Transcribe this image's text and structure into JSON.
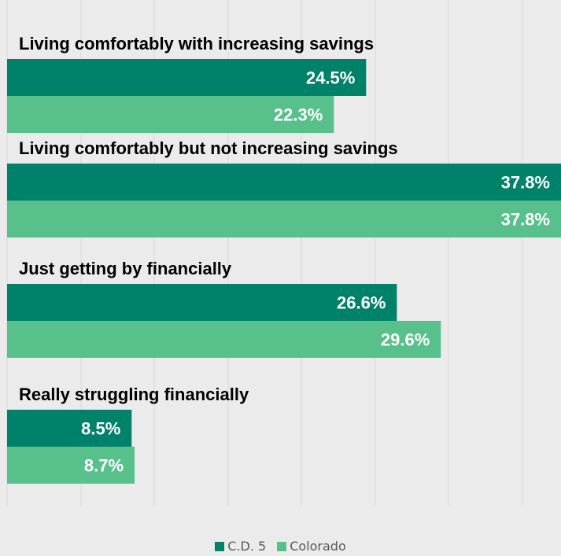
{
  "chart_data": {
    "type": "bar",
    "orientation": "horizontal",
    "categories": [
      "Living comfortably with increasing savings",
      "Living comfortably but not increasing savings",
      "Just getting by financially",
      "Really struggling financially"
    ],
    "series": [
      {
        "name": "C.D. 5",
        "values": [
          24.5,
          37.8,
          26.6,
          8.5
        ],
        "labels": [
          "24.5%",
          "37.8%",
          "26.6%",
          "8.5%"
        ],
        "color": "#008169"
      },
      {
        "name": "Colorado",
        "values": [
          22.3,
          37.8,
          29.6,
          8.7
        ],
        "labels": [
          "22.3%",
          "37.8%",
          "29.6%",
          "8.7%"
        ],
        "color": "#57c08b"
      }
    ],
    "xlim": [
      0,
      37.8
    ],
    "grid": true,
    "legend_position": "bottom"
  }
}
